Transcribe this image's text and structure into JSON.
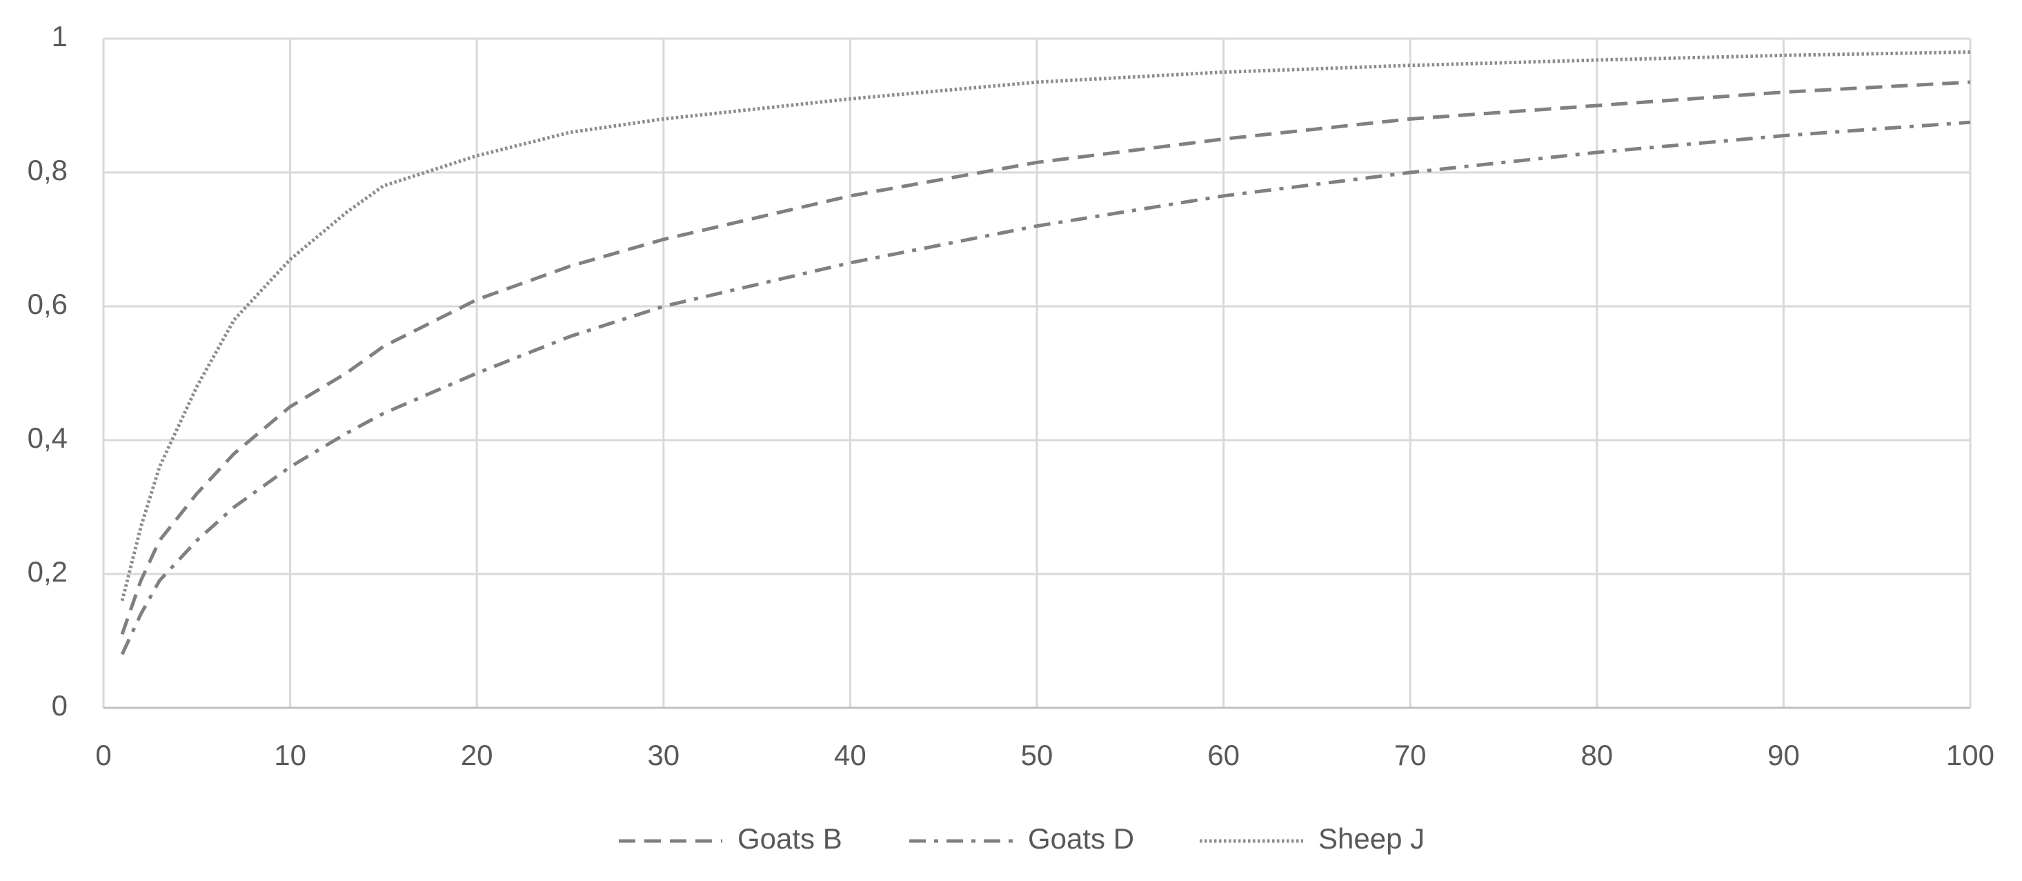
{
  "chart_data": {
    "type": "line",
    "x": [
      1,
      2,
      3,
      5,
      7,
      10,
      13,
      15,
      20,
      25,
      30,
      40,
      50,
      60,
      70,
      80,
      90,
      100
    ],
    "series": [
      {
        "name": "Goats B",
        "color": "#808080",
        "line_style": "dashed",
        "values": [
          0.11,
          0.19,
          0.25,
          0.32,
          0.38,
          0.45,
          0.5,
          0.54,
          0.61,
          0.66,
          0.7,
          0.765,
          0.815,
          0.85,
          0.88,
          0.9,
          0.92,
          0.935
        ]
      },
      {
        "name": "Goats D",
        "color": "#808080",
        "line_style": "dashdot",
        "values": [
          0.08,
          0.14,
          0.19,
          0.25,
          0.3,
          0.36,
          0.41,
          0.44,
          0.5,
          0.555,
          0.6,
          0.665,
          0.72,
          0.765,
          0.8,
          0.83,
          0.855,
          0.875
        ]
      },
      {
        "name": "Sheep J",
        "color": "#8c8c8c",
        "line_style": "dotted",
        "values": [
          0.16,
          0.27,
          0.36,
          0.48,
          0.58,
          0.67,
          0.74,
          0.78,
          0.825,
          0.86,
          0.88,
          0.91,
          0.935,
          0.95,
          0.96,
          0.968,
          0.975,
          0.98
        ]
      }
    ],
    "xlim": [
      0,
      100
    ],
    "xticks": [
      0,
      10,
      20,
      30,
      40,
      50,
      60,
      70,
      80,
      90,
      100
    ],
    "ylim": [
      0,
      1
    ],
    "yticks": [
      0,
      {
        "value": 0.2,
        "label": "0,2"
      },
      {
        "value": 0.4,
        "label": "0,4"
      },
      {
        "value": 0.6,
        "label": "0,6"
      },
      {
        "value": 0.8,
        "label": "0,8"
      },
      1
    ],
    "grid": true,
    "legend": "bottom"
  }
}
